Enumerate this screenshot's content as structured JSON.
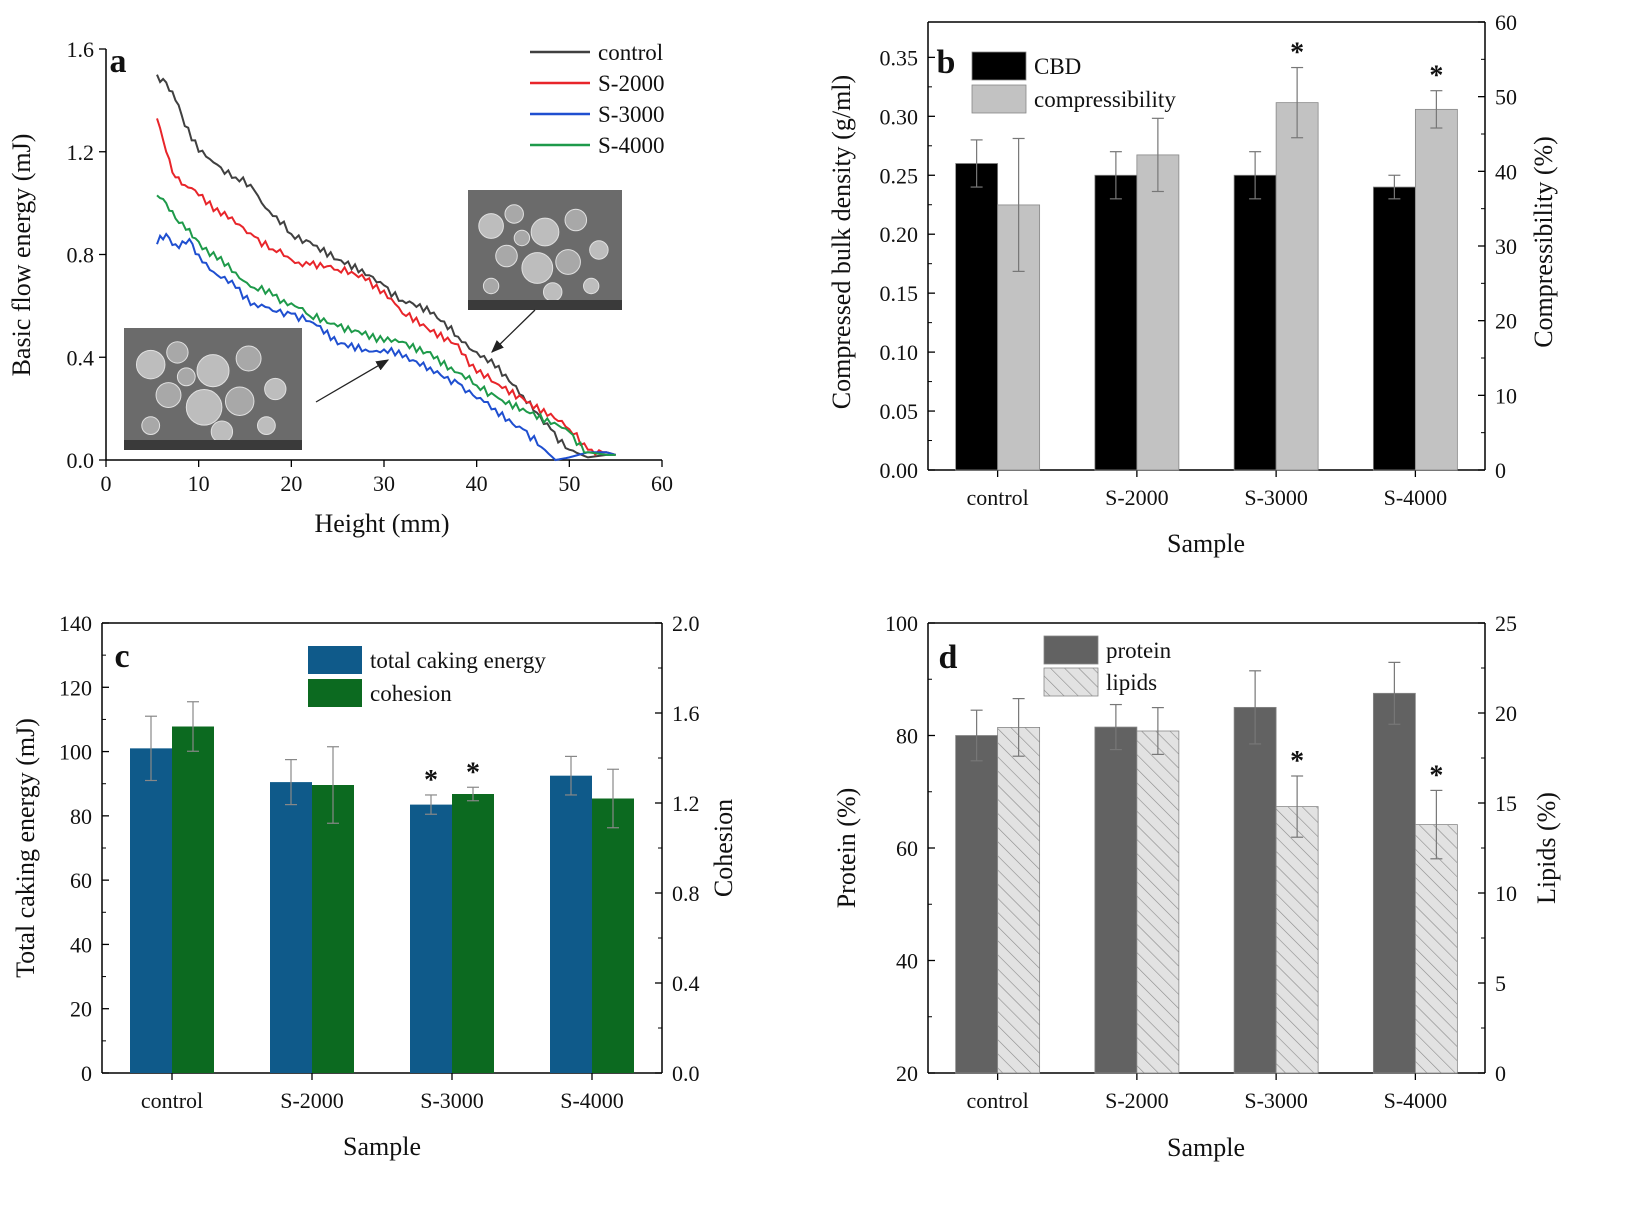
{
  "chart_data": [
    {
      "panel": "a",
      "type": "line",
      "xlabel": "Height (mm)",
      "ylabel": "Basic flow energy (mJ)",
      "xlim": [
        0,
        60
      ],
      "ylim": [
        0.0,
        1.6
      ],
      "xticks": [
        "0",
        "10",
        "20",
        "30",
        "40",
        "50",
        "60"
      ],
      "yticks": [
        "0.0",
        "0.4",
        "0.8",
        "1.2",
        "1.6"
      ],
      "legend_position": "top-right",
      "insets": [
        "sem-image-large-particles",
        "sem-image-small-particles"
      ],
      "series": [
        {
          "name": "control",
          "color": "#404040",
          "x": [
            5.5,
            6.5,
            7.5,
            8.5,
            10,
            12,
            14,
            16,
            18,
            20,
            22,
            25,
            28,
            30,
            32,
            35,
            38,
            40,
            42,
            45,
            48,
            50,
            52,
            54,
            55
          ],
          "y": [
            1.5,
            1.47,
            1.4,
            1.3,
            1.2,
            1.15,
            1.1,
            1.05,
            0.95,
            0.88,
            0.85,
            0.78,
            0.72,
            0.68,
            0.62,
            0.57,
            0.48,
            0.42,
            0.36,
            0.25,
            0.12,
            0.04,
            0.01,
            0.02,
            0.02
          ]
        },
        {
          "name": "S-2000",
          "color": "#e8252a",
          "x": [
            5.5,
            6.5,
            7.5,
            8.5,
            10,
            12,
            14,
            16,
            18,
            20,
            22,
            25,
            28,
            30,
            32,
            35,
            38,
            40,
            42,
            45,
            48,
            50,
            52,
            54,
            55
          ],
          "y": [
            1.33,
            1.2,
            1.1,
            1.07,
            1.03,
            0.98,
            0.92,
            0.87,
            0.82,
            0.78,
            0.76,
            0.74,
            0.7,
            0.66,
            0.57,
            0.5,
            0.45,
            0.34,
            0.3,
            0.24,
            0.18,
            0.12,
            0.04,
            0.03,
            0.02
          ]
        },
        {
          "name": "S-3000",
          "color": "#1f4fd0",
          "x": [
            5.5,
            6.5,
            7.5,
            9,
            10,
            12,
            14,
            16,
            18,
            20,
            22,
            25,
            28,
            30,
            32,
            35,
            38,
            40,
            42,
            45,
            47,
            48.5,
            50,
            52,
            54,
            55
          ],
          "y": [
            0.84,
            0.88,
            0.84,
            0.86,
            0.8,
            0.72,
            0.67,
            0.61,
            0.58,
            0.57,
            0.54,
            0.45,
            0.43,
            0.43,
            0.4,
            0.36,
            0.3,
            0.24,
            0.2,
            0.12,
            0.05,
            0.0,
            0.01,
            0.03,
            0.03,
            0.02
          ]
        },
        {
          "name": "S-4000",
          "color": "#1e9a4a",
          "x": [
            5.5,
            6.5,
            7.5,
            9,
            10,
            12,
            14,
            16,
            18,
            20,
            22,
            25,
            28,
            30,
            32,
            35,
            38,
            40,
            42,
            45,
            48,
            50,
            52,
            54,
            55
          ],
          "y": [
            1.03,
            1.0,
            0.94,
            0.9,
            0.85,
            0.78,
            0.73,
            0.67,
            0.64,
            0.61,
            0.56,
            0.52,
            0.5,
            0.46,
            0.46,
            0.42,
            0.34,
            0.29,
            0.25,
            0.2,
            0.14,
            0.11,
            0.03,
            0.02,
            0.02
          ]
        }
      ]
    },
    {
      "panel": "b",
      "type": "bar",
      "categories": [
        "control",
        "S-2000",
        "S-3000",
        "S-4000"
      ],
      "xlabel": "Sample",
      "ylabel": "Compressed bulk density (g/ml)",
      "y2label": "Compressibility (%)",
      "ylim": [
        0.0,
        0.38
      ],
      "y2lim": [
        0,
        60
      ],
      "yticks": [
        "0.00",
        "0.05",
        "0.10",
        "0.15",
        "0.20",
        "0.25",
        "0.30",
        "0.35"
      ],
      "y2ticks": [
        "0",
        "10",
        "20",
        "30",
        "40",
        "50",
        "60"
      ],
      "legend_position": "top-left",
      "series": [
        {
          "name": "CBD",
          "axis": "left",
          "color": "#000000",
          "values": [
            0.26,
            0.25,
            0.25,
            0.24
          ],
          "errors": [
            0.02,
            0.02,
            0.02,
            0.01
          ],
          "marks": [
            "",
            "",
            "",
            ""
          ]
        },
        {
          "name": "compressibility",
          "axis": "right",
          "color": "#c2c2c2",
          "values": [
            35.5,
            42.2,
            49.2,
            48.3
          ],
          "errors": [
            8.9,
            4.9,
            4.7,
            2.5
          ],
          "marks": [
            "",
            "",
            "*",
            "*"
          ]
        }
      ]
    },
    {
      "panel": "c",
      "type": "bar",
      "categories": [
        "control",
        "S-2000",
        "S-3000",
        "S-4000"
      ],
      "xlabel": "Sample",
      "ylabel": "Total caking energy (mJ)",
      "y2label": "Cohesion",
      "ylim": [
        0,
        140
      ],
      "y2lim": [
        0.0,
        2.0
      ],
      "yticks": [
        "0",
        "20",
        "40",
        "60",
        "80",
        "100",
        "120",
        "140"
      ],
      "y2ticks": [
        "0.0",
        "0.4",
        "0.8",
        "1.2",
        "1.6",
        "2.0"
      ],
      "legend_position": "top-center",
      "series": [
        {
          "name": "total caking energy",
          "axis": "left",
          "color": "#0f5a8a",
          "values": [
            101,
            90.5,
            83.5,
            92.5
          ],
          "errors": [
            10,
            7,
            3,
            6
          ],
          "marks": [
            "",
            "",
            "*",
            ""
          ]
        },
        {
          "name": "cohesion",
          "axis": "right",
          "color": "#0c6a20",
          "values": [
            1.54,
            1.28,
            1.24,
            1.22
          ],
          "errors": [
            0.11,
            0.17,
            0.03,
            0.13
          ],
          "marks": [
            "",
            "",
            "*",
            ""
          ]
        }
      ]
    },
    {
      "panel": "d",
      "type": "bar",
      "categories": [
        "control",
        "S-2000",
        "S-3000",
        "S-4000"
      ],
      "xlabel": "Sample",
      "ylabel": "Protein (%)",
      "y2label": "Lipids (%)",
      "ylim": [
        20,
        100
      ],
      "y2lim": [
        0,
        25
      ],
      "yticks": [
        "20",
        "40",
        "60",
        "80",
        "100"
      ],
      "y2ticks": [
        "0",
        "5",
        "10",
        "15",
        "20",
        "25"
      ],
      "legend_position": "top-left",
      "series": [
        {
          "name": "protein",
          "axis": "left",
          "color": "#626262",
          "values": [
            80,
            81.5,
            85,
            87.5
          ],
          "errors": [
            4.5,
            4,
            6.5,
            5.5
          ],
          "marks": [
            "",
            "",
            "",
            ""
          ]
        },
        {
          "name": "lipids",
          "axis": "right",
          "color": "#d9d9d9",
          "pattern": "hatched",
          "values": [
            19.2,
            19.0,
            14.8,
            13.8
          ],
          "errors": [
            1.6,
            1.3,
            1.7,
            1.9
          ],
          "marks": [
            "",
            "",
            "*",
            "*"
          ]
        }
      ]
    }
  ]
}
